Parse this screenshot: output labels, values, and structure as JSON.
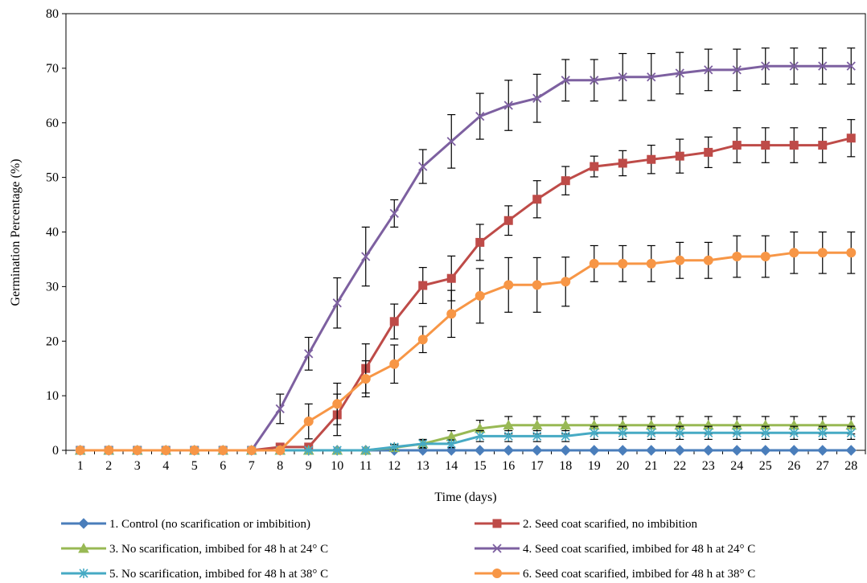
{
  "chart_data": {
    "type": "line",
    "title": "",
    "xlabel": "Time (days)",
    "ylabel": "Germination Percentage (%)",
    "ylim": [
      0,
      80
    ],
    "yticks": [
      0,
      10,
      20,
      30,
      40,
      50,
      60,
      70,
      80
    ],
    "grid": false,
    "legend_position": "bottom",
    "categories": [
      "1",
      "2",
      "3",
      "4",
      "5",
      "6",
      "7",
      "8",
      "9",
      "10",
      "11",
      "12",
      "13",
      "14",
      "15",
      "16",
      "17",
      "18",
      "19",
      "20",
      "21",
      "22",
      "23",
      "24",
      "25",
      "26",
      "27",
      "28"
    ],
    "series": [
      {
        "name": "1. Control (no scarification or imbibition)",
        "color": "#4a7ebb",
        "marker": "diamond",
        "values": [
          0,
          0,
          0,
          0,
          0,
          0,
          0,
          0,
          0,
          0,
          0,
          0,
          0,
          0,
          0,
          0,
          0,
          0,
          0,
          0,
          0,
          0,
          0,
          0,
          0,
          0,
          0,
          0
        ],
        "errors": [
          0,
          0,
          0,
          0,
          0,
          0,
          0,
          0,
          0,
          0,
          0,
          0,
          0,
          0,
          0,
          0,
          0,
          0,
          0,
          0,
          0,
          0,
          0,
          0,
          0,
          0,
          0,
          0
        ]
      },
      {
        "name": "2. Seed coat scarified, no imbibition",
        "color": "#be4b48",
        "marker": "square",
        "values": [
          0,
          0,
          0,
          0,
          0,
          0,
          0,
          0.6,
          0.6,
          6.5,
          15,
          23.6,
          30.2,
          31.5,
          38.1,
          42.1,
          46,
          49.4,
          52,
          52.6,
          53.3,
          53.9,
          54.6,
          55.9,
          55.9,
          55.9,
          55.9,
          57.2
        ],
        "errors": [
          0,
          0,
          0,
          0,
          0,
          0,
          0,
          0.5,
          0.5,
          3.8,
          4.5,
          3.2,
          3.3,
          4.1,
          3.3,
          2.7,
          3.4,
          2.6,
          1.9,
          2.3,
          2.6,
          3.1,
          2.8,
          3.2,
          3.2,
          3.2,
          3.2,
          3.4
        ]
      },
      {
        "name": "3. No scarification, imbibed for 48 h at 24° C",
        "color": "#98b954",
        "marker": "triangle",
        "values": [
          0,
          0,
          0,
          0,
          0,
          0,
          0,
          0,
          0,
          0,
          0,
          0.5,
          1.2,
          2.5,
          4,
          4.6,
          4.6,
          4.6,
          4.6,
          4.6,
          4.6,
          4.6,
          4.6,
          4.6,
          4.6,
          4.6,
          4.6,
          4.6
        ],
        "errors": [
          0,
          0,
          0,
          0,
          0,
          0,
          0,
          0,
          0,
          0,
          0,
          0.5,
          0.8,
          1.1,
          1.5,
          1.6,
          1.6,
          1.6,
          1.6,
          1.6,
          1.6,
          1.6,
          1.6,
          1.6,
          1.6,
          1.6,
          1.6,
          1.6
        ]
      },
      {
        "name": "4. Seed coat scarified, imbibed for 48 h at 24° C",
        "color": "#7d60a0",
        "marker": "x",
        "values": [
          0,
          0,
          0,
          0,
          0,
          0,
          0,
          7.6,
          17.7,
          27,
          35.5,
          43.4,
          52,
          56.6,
          61.2,
          63.2,
          64.5,
          67.8,
          67.8,
          68.4,
          68.4,
          69.1,
          69.7,
          69.7,
          70.4,
          70.4,
          70.4,
          70.4
        ],
        "errors": [
          0,
          0,
          0,
          0,
          0,
          0,
          0,
          2.7,
          3,
          4.6,
          5.4,
          2.5,
          3.1,
          4.9,
          4.2,
          4.6,
          4.4,
          3.8,
          3.8,
          4.3,
          4.3,
          3.8,
          3.8,
          3.8,
          3.3,
          3.3,
          3.3,
          3.3
        ]
      },
      {
        "name": "5. No scarification, imbibed for 48 h at 38° C",
        "color": "#46aac4",
        "marker": "asterisk",
        "values": [
          0,
          0,
          0,
          0,
          0,
          0,
          0,
          0,
          0,
          0,
          0,
          0.6,
          1.2,
          1.2,
          2.6,
          2.6,
          2.6,
          2.6,
          3.2,
          3.2,
          3.2,
          3.2,
          3.2,
          3.2,
          3.2,
          3.2,
          3.2,
          3.2
        ],
        "errors": [
          0,
          0,
          0,
          0,
          0,
          0,
          0,
          0,
          0,
          0,
          0,
          0.5,
          0.7,
          0.7,
          1,
          1,
          1,
          1,
          1.2,
          1.2,
          1.2,
          1.2,
          1.2,
          1.2,
          1.2,
          1.2,
          1.2,
          1.2
        ]
      },
      {
        "name": "6. Seed coat scarified, imbibed for 48 h at 38° C",
        "color": "#f79646",
        "marker": "circle",
        "values": [
          0,
          0,
          0,
          0,
          0,
          0,
          0,
          0,
          5.3,
          8.5,
          13.1,
          15.8,
          20.3,
          25,
          28.3,
          30.3,
          30.3,
          30.9,
          34.2,
          34.2,
          34.2,
          34.8,
          34.8,
          35.5,
          35.5,
          36.2,
          36.2,
          36.2
        ],
        "errors": [
          0,
          0,
          0,
          0,
          0,
          0,
          0,
          0,
          3.2,
          3.8,
          3.3,
          3.5,
          2.4,
          4.3,
          5,
          5,
          5,
          4.5,
          3.3,
          3.3,
          3.3,
          3.3,
          3.3,
          3.8,
          3.8,
          3.8,
          3.8,
          3.8
        ]
      }
    ]
  }
}
